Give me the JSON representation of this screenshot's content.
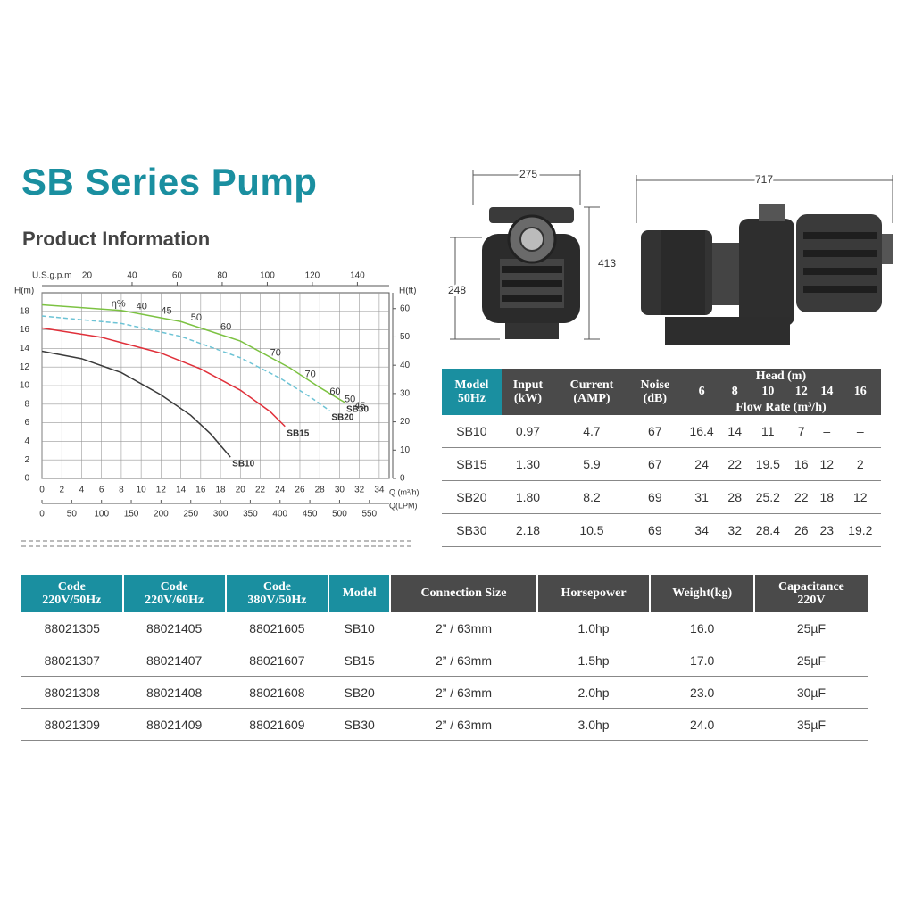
{
  "header": {
    "title": "SB Series Pump",
    "subtitle": "Product Information"
  },
  "chart_data": {
    "type": "line",
    "x_label": "Q (m³/h)",
    "y_label": "H(m)",
    "y2_label": "H(ft)",
    "x2_label": "U.S.g.p.m",
    "x3_label": "Q(LPM)",
    "xlim": [
      0,
      35
    ],
    "xticks": [
      0,
      2,
      4,
      6,
      8,
      10,
      12,
      14,
      16,
      18,
      20,
      22,
      24,
      26,
      28,
      30,
      32,
      34
    ],
    "ylim": [
      0,
      20
    ],
    "yticks": [
      0,
      2,
      4,
      6,
      8,
      10,
      12,
      14,
      16,
      18
    ],
    "y2lim": [
      0,
      65.6
    ],
    "y2ticks": [
      0,
      10,
      20,
      30,
      40,
      50,
      60
    ],
    "x2lim": [
      0,
      154.1
    ],
    "x2ticks": [
      20,
      40,
      60,
      80,
      100,
      120,
      140
    ],
    "x3lim": [
      0,
      583.3
    ],
    "x3ticks": [
      0,
      50,
      100,
      150,
      200,
      250,
      300,
      350,
      400,
      450,
      500,
      550
    ],
    "grid": true,
    "series": [
      {
        "name": "SB10",
        "color": "#3a3a3a",
        "line_style": "solid",
        "x": [
          0,
          4,
          8,
          12,
          15,
          17,
          19
        ],
        "values": [
          13.7,
          12.9,
          11.4,
          9,
          6.8,
          4.8,
          2.3
        ]
      },
      {
        "name": "SB15",
        "color": "#e0303a",
        "line_style": "solid",
        "x": [
          0,
          6,
          12,
          16,
          20,
          23,
          24.5
        ],
        "values": [
          16.2,
          15.2,
          13.5,
          11.8,
          9.5,
          7.2,
          5.6
        ]
      },
      {
        "name": "SB20",
        "color": "#6cc3d5",
        "line_style": "dashed",
        "x": [
          0,
          8,
          14,
          20,
          24,
          27,
          29
        ],
        "values": [
          17.5,
          16.7,
          15.3,
          13,
          10.8,
          8.8,
          7.3
        ]
      },
      {
        "name": "SB30",
        "color": "#7cc242",
        "line_style": "solid",
        "x": [
          0,
          8,
          14,
          20,
          25,
          28,
          30.5
        ],
        "values": [
          18.7,
          18.1,
          16.9,
          14.8,
          11.9,
          9.8,
          8.2
        ]
      }
    ],
    "annotations": [
      "η%",
      "40",
      "45",
      "50",
      "60",
      "70",
      "70",
      "60",
      "50",
      "45"
    ]
  },
  "dimensions": {
    "front_width": 275,
    "front_height": 413,
    "front_base_height": 248,
    "side_length": 717
  },
  "performance_table": {
    "columns": [
      "Model\n50Hz",
      "Input\n(kW)",
      "Current\n(AMP)",
      "Noise\n(dB)"
    ],
    "head_header": "Head (m)",
    "heads": [
      6,
      8,
      10,
      12,
      14,
      16
    ],
    "flow_header": "Flow Rate (m³/h)",
    "rows": [
      [
        "SB10",
        "0.97",
        "4.7",
        "67",
        "16.4",
        "14",
        "11",
        "7",
        "–",
        "–"
      ],
      [
        "SB15",
        "1.30",
        "5.9",
        "67",
        "24",
        "22",
        "19.5",
        "16",
        "12",
        "2"
      ],
      [
        "SB20",
        "1.80",
        "8.2",
        "69",
        "31",
        "28",
        "25.2",
        "22",
        "18",
        "12"
      ],
      [
        "SB30",
        "2.18",
        "10.5",
        "69",
        "34",
        "32",
        "28.4",
        "26",
        "23",
        "19.2"
      ]
    ]
  },
  "spec_table": {
    "columns": [
      "Code\n220V/50Hz",
      "Code\n220V/60Hz",
      "Code\n380V/50Hz",
      "Model",
      "Connection Size",
      "Horsepower",
      "Weight(kg)",
      "Capacitance\n220V"
    ],
    "rows": [
      [
        "88021305",
        "88021405",
        "88021605",
        "SB10",
        "2” / 63mm",
        "1.0hp",
        "16.0",
        "25µF"
      ],
      [
        "88021307",
        "88021407",
        "88021607",
        "SB15",
        "2” / 63mm",
        "1.5hp",
        "17.0",
        "25µF"
      ],
      [
        "88021308",
        "88021408",
        "88021608",
        "SB20",
        "2” / 63mm",
        "2.0hp",
        "23.0",
        "30µF"
      ],
      [
        "88021309",
        "88021409",
        "88021609",
        "SB30",
        "2” / 63mm",
        "3.0hp",
        "24.0",
        "35µF"
      ]
    ]
  }
}
